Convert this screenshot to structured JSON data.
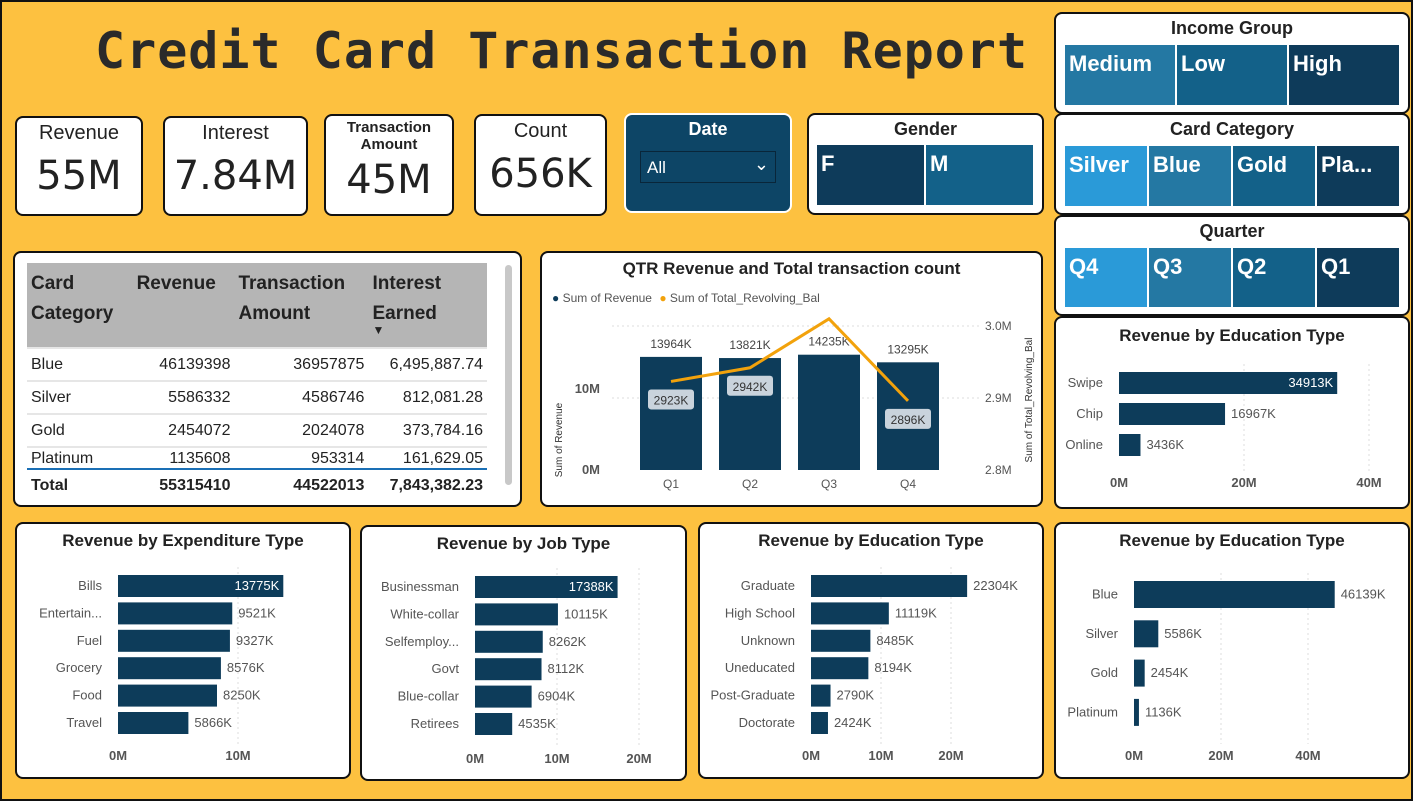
{
  "title": "Credit Card Transaction Report",
  "kpis": [
    {
      "label": "Revenue",
      "value": "55M"
    },
    {
      "label": "Interest",
      "value": "7.84M"
    },
    {
      "label": "Transaction Amount",
      "value": "45M"
    },
    {
      "label": "Count",
      "value": "656K"
    }
  ],
  "date_slicer": {
    "title": "Date",
    "selected": "All"
  },
  "gender_slicer": {
    "title": "Gender",
    "options": [
      "F",
      "M"
    ]
  },
  "income_slicer": {
    "title": "Income Group",
    "options": [
      "Medium",
      "Low",
      "High"
    ]
  },
  "card_slicer": {
    "title": "Card Category",
    "options": [
      "Silver",
      "Blue",
      "Gold",
      "Pla..."
    ]
  },
  "quarter_slicer": {
    "title": "Quarter",
    "options": [
      "Q4",
      "Q3",
      "Q2",
      "Q1"
    ]
  },
  "colors": {
    "background": "#FDC140",
    "bar": "#0d3c5a",
    "line": "#F2A20C"
  },
  "table": {
    "headers": [
      [
        "Card",
        "Category"
      ],
      [
        "Revenue",
        ""
      ],
      [
        "Transaction",
        "Amount"
      ],
      [
        "Interest",
        "Earned"
      ]
    ],
    "rows": [
      [
        "Blue",
        "46139398",
        "36957875",
        "6,495,887.74"
      ],
      [
        "Silver",
        "5586332",
        "4586746",
        "812,081.28"
      ],
      [
        "Gold",
        "2454072",
        "2024078",
        "373,784.16"
      ],
      [
        "Platinum",
        "1135608",
        "953314",
        "161,629.05"
      ]
    ],
    "total": [
      "Total",
      "55315410",
      "44522013",
      "7,843,382.23"
    ]
  },
  "chart_data": [
    {
      "id": "qtr",
      "type": "bar",
      "title": "QTR Revenue and Total transaction count",
      "legend": [
        "Sum of Revenue",
        "Sum of Total_Revolving_Bal"
      ],
      "categories": [
        "Q1",
        "Q2",
        "Q3",
        "Q4"
      ],
      "series": [
        {
          "name": "Sum of Revenue",
          "values": [
            13964,
            13821,
            14235,
            13295
          ],
          "labels": [
            "13964K",
            "13821K",
            "14235K",
            "13295K"
          ]
        },
        {
          "name": "Sum of Total_Revolving_Bal",
          "values": [
            2923,
            2942,
            3010,
            2896
          ],
          "labels": [
            "2923K",
            "2942K",
            "",
            "2896K"
          ]
        }
      ],
      "ylabel": "Sum of Revenue",
      "y2label": "Sum of Total_Revolving_Bal",
      "yticks": [
        "0M",
        "10M"
      ],
      "y2ticks": [
        "2.8M",
        "2.9M",
        "3.0M"
      ]
    },
    {
      "id": "edu1",
      "type": "bar",
      "title": "Revenue by Education Type",
      "categories": [
        "Swipe",
        "Chip",
        "Online"
      ],
      "values": [
        34913,
        16967,
        3436
      ],
      "labels": [
        "34913K",
        "16967K",
        "3436K"
      ],
      "xticks": [
        "0M",
        "20M",
        "40M"
      ],
      "xmax": 40000
    },
    {
      "id": "exp",
      "type": "bar",
      "title": "Revenue by Expenditure Type",
      "categories": [
        "Bills",
        "Entertain...",
        "Fuel",
        "Grocery",
        "Food",
        "Travel"
      ],
      "values": [
        13775,
        9521,
        9327,
        8576,
        8250,
        5866
      ],
      "labels": [
        "13775K",
        "9521K",
        "9327K",
        "8576K",
        "8250K",
        "5866K"
      ],
      "xticks": [
        "0M",
        "10M"
      ],
      "xmax": 10000
    },
    {
      "id": "job",
      "type": "bar",
      "title": "Revenue by Job Type",
      "categories": [
        "Businessman",
        "White-collar",
        "Selfemploy...",
        "Govt",
        "Blue-collar",
        "Retirees"
      ],
      "values": [
        17388,
        10115,
        8262,
        8112,
        6904,
        4535
      ],
      "labels": [
        "17388K",
        "10115K",
        "8262K",
        "8112K",
        "6904K",
        "4535K"
      ],
      "xticks": [
        "0M",
        "10M",
        "20M"
      ],
      "xmax": 20000
    },
    {
      "id": "edu2",
      "type": "bar",
      "title": "Revenue by Education Type",
      "categories": [
        "Graduate",
        "High School",
        "Unknown",
        "Uneducated",
        "Post-Graduate",
        "Doctorate"
      ],
      "values": [
        22304,
        11119,
        8485,
        8194,
        2790,
        2424
      ],
      "labels": [
        "22304K",
        "11119K",
        "8485K",
        "8194K",
        "2790K",
        "2424K"
      ],
      "xticks": [
        "0M",
        "10M",
        "20M"
      ],
      "xmax": 20000
    },
    {
      "id": "edu3",
      "type": "bar",
      "title": "Revenue by Education Type",
      "categories": [
        "Blue",
        "Silver",
        "Gold",
        "Platinum"
      ],
      "values": [
        46139,
        5586,
        2454,
        1136
      ],
      "labels": [
        "46139K",
        "5586K",
        "2454K",
        "1136K"
      ],
      "xticks": [
        "0M",
        "20M",
        "40M"
      ],
      "xmax": 40000
    }
  ]
}
